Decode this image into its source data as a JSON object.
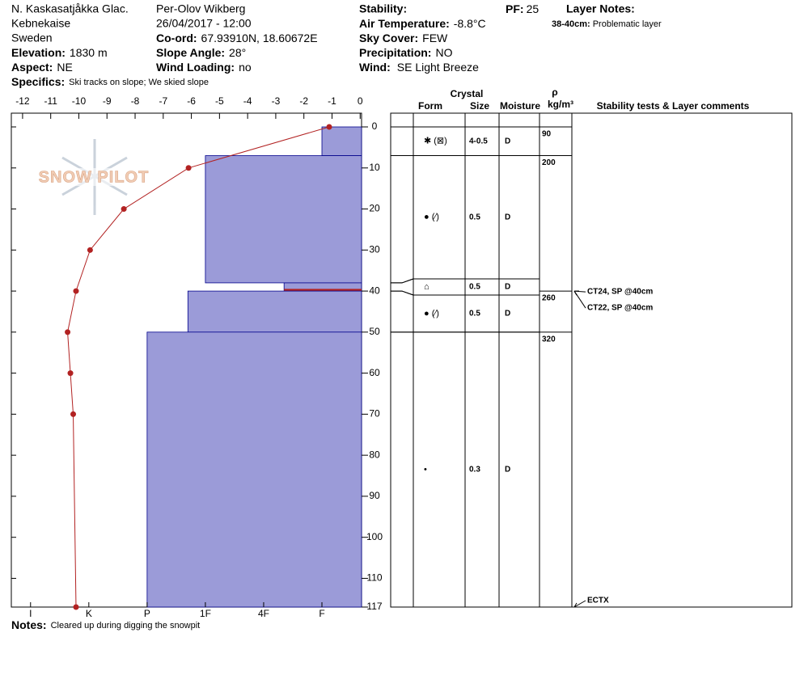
{
  "header": {
    "site": "N. Kaskasatjåkka Glac.",
    "range": "Kebnekaise",
    "country": "Sweden",
    "elevation_label": "Elevation:",
    "elevation": "1830 m",
    "aspect_label": "Aspect:",
    "aspect": "NE",
    "specifics_label": "Specifics:",
    "specifics": "Ski tracks on slope; We skied slope",
    "observer": "Per-Olov Wikberg",
    "datetime": "26/04/2017 - 12:00",
    "coord_label": "Co-ord:",
    "coord": "67.93910N, 18.60672E",
    "slope_label": "Slope Angle:",
    "slope": "28°",
    "wind_loading_label": "Wind Loading:",
    "wind_loading": "no",
    "stability_label": "Stability:",
    "air_temp_label": "Air Temperature:",
    "air_temp": "-8.8°C",
    "sky_label": "Sky Cover:",
    "sky": "FEW",
    "precip_label": "Precipitation:",
    "precip": "NO",
    "wind_label": "Wind:",
    "wind": "SE Light Breeze",
    "pf_label": "PF:",
    "pf": "25",
    "layer_notes_label": "Layer Notes:",
    "layer_note_range": "38-40cm:",
    "layer_note": "Problematic layer",
    "notes_label": "Notes:",
    "notes": "Cleared up during digging the snowpit",
    "logo": "SNOW PILOT"
  },
  "chart_data": {
    "type": "snow_profile",
    "xlim": [
      -12.4,
      0.05
    ],
    "xticks": [
      -12,
      -11,
      -10,
      -9,
      -8,
      -7,
      -6,
      -5,
      -4,
      -3,
      -2,
      -1,
      0
    ],
    "ylim": [
      -3.35,
      117
    ],
    "yticks": [
      0,
      10,
      20,
      30,
      40,
      50,
      60,
      70,
      80,
      90,
      100,
      110,
      117
    ],
    "hardness_lim": [
      6.33,
      0.32
    ],
    "hardness_ticks": [
      {
        "value": 6,
        "label": "I"
      },
      {
        "value": 5,
        "label": "K"
      },
      {
        "value": 4,
        "label": "P"
      },
      {
        "value": 3,
        "label": "1F"
      },
      {
        "value": 2,
        "label": "4F"
      },
      {
        "value": 1,
        "label": "F"
      }
    ],
    "temperature": {
      "color": "#b22222",
      "depths": [
        0,
        10,
        20,
        30,
        40,
        50,
        60,
        70,
        117
      ],
      "values": [
        -1.1,
        -6.1,
        -8.4,
        -9.6,
        -10.1,
        -10.4,
        -10.3,
        -10.2,
        -10.1
      ]
    },
    "layer_color": "#9b9bd8",
    "concern_color": "#b22222",
    "layers": [
      {
        "top": 0,
        "bottom": 7,
        "hardness": 1,
        "form": "✱ (⊠)",
        "size": "4-0.5",
        "moisture": "D"
      },
      {
        "top": 7,
        "bottom": 38,
        "hardness": 3,
        "form": "● (⁄)",
        "size": "0.5",
        "moisture": "D"
      },
      {
        "top": 38,
        "bottom": 40,
        "hardness": 1.65,
        "form": "⌂",
        "size": "0.5",
        "moisture": "D",
        "concern": true
      },
      {
        "top": 40,
        "bottom": 50,
        "hardness": 3.3,
        "form": "● (⁄)",
        "size": "0.5",
        "moisture": "D"
      },
      {
        "top": 50,
        "bottom": 117,
        "hardness": 4,
        "form": "•",
        "size": "0.3",
        "moisture": "D"
      }
    ],
    "columns": {
      "crystal": "Crystal",
      "form": "Form",
      "size": "Size",
      "moisture": "Moisture",
      "rho": "ρ",
      "density_unit": "kg/m³",
      "comments": "Stability tests & Layer comments"
    },
    "density": {
      "depths": [
        0,
        7,
        40,
        50
      ],
      "values": [
        90,
        200,
        260,
        320
      ]
    },
    "tests": [
      {
        "depth": 40,
        "text": "CT24, SP @40cm"
      },
      {
        "depth": 40,
        "text": "CT22, SP @40cm"
      },
      {
        "depth": 117,
        "text": "ECTX"
      }
    ]
  }
}
